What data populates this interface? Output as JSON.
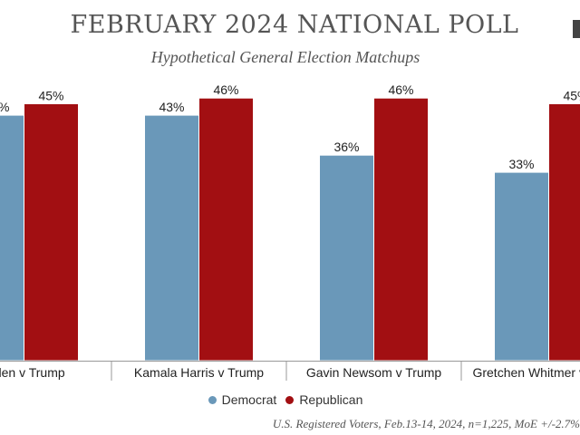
{
  "chart_data": {
    "type": "bar",
    "title": "FEBRUARY 2024 NATIONAL POLL",
    "subtitle": "Hypothetical General Election Matchups",
    "categories": [
      "Biden v Trump",
      "Kamala Harris v Trump",
      "Gavin Newsom v Trump",
      "Gretchen Whitmer v Trump"
    ],
    "series": [
      {
        "name": "Democrat",
        "color": "#6a98b9",
        "values": [
          43,
          43,
          36,
          33
        ]
      },
      {
        "name": "Republican",
        "color": "#a20f12",
        "values": [
          45,
          46,
          46,
          45
        ]
      }
    ],
    "value_suffix": "%",
    "ylim": [
      0,
      50
    ],
    "grid": false,
    "legend_position": "bottom",
    "footnote": "U.S. Registered Voters, Feb.13-14, 2024, n=1,225, MoE +/-2.7%"
  },
  "legend": {
    "democrat_label": "Democrat",
    "republican_label": "Republican"
  }
}
